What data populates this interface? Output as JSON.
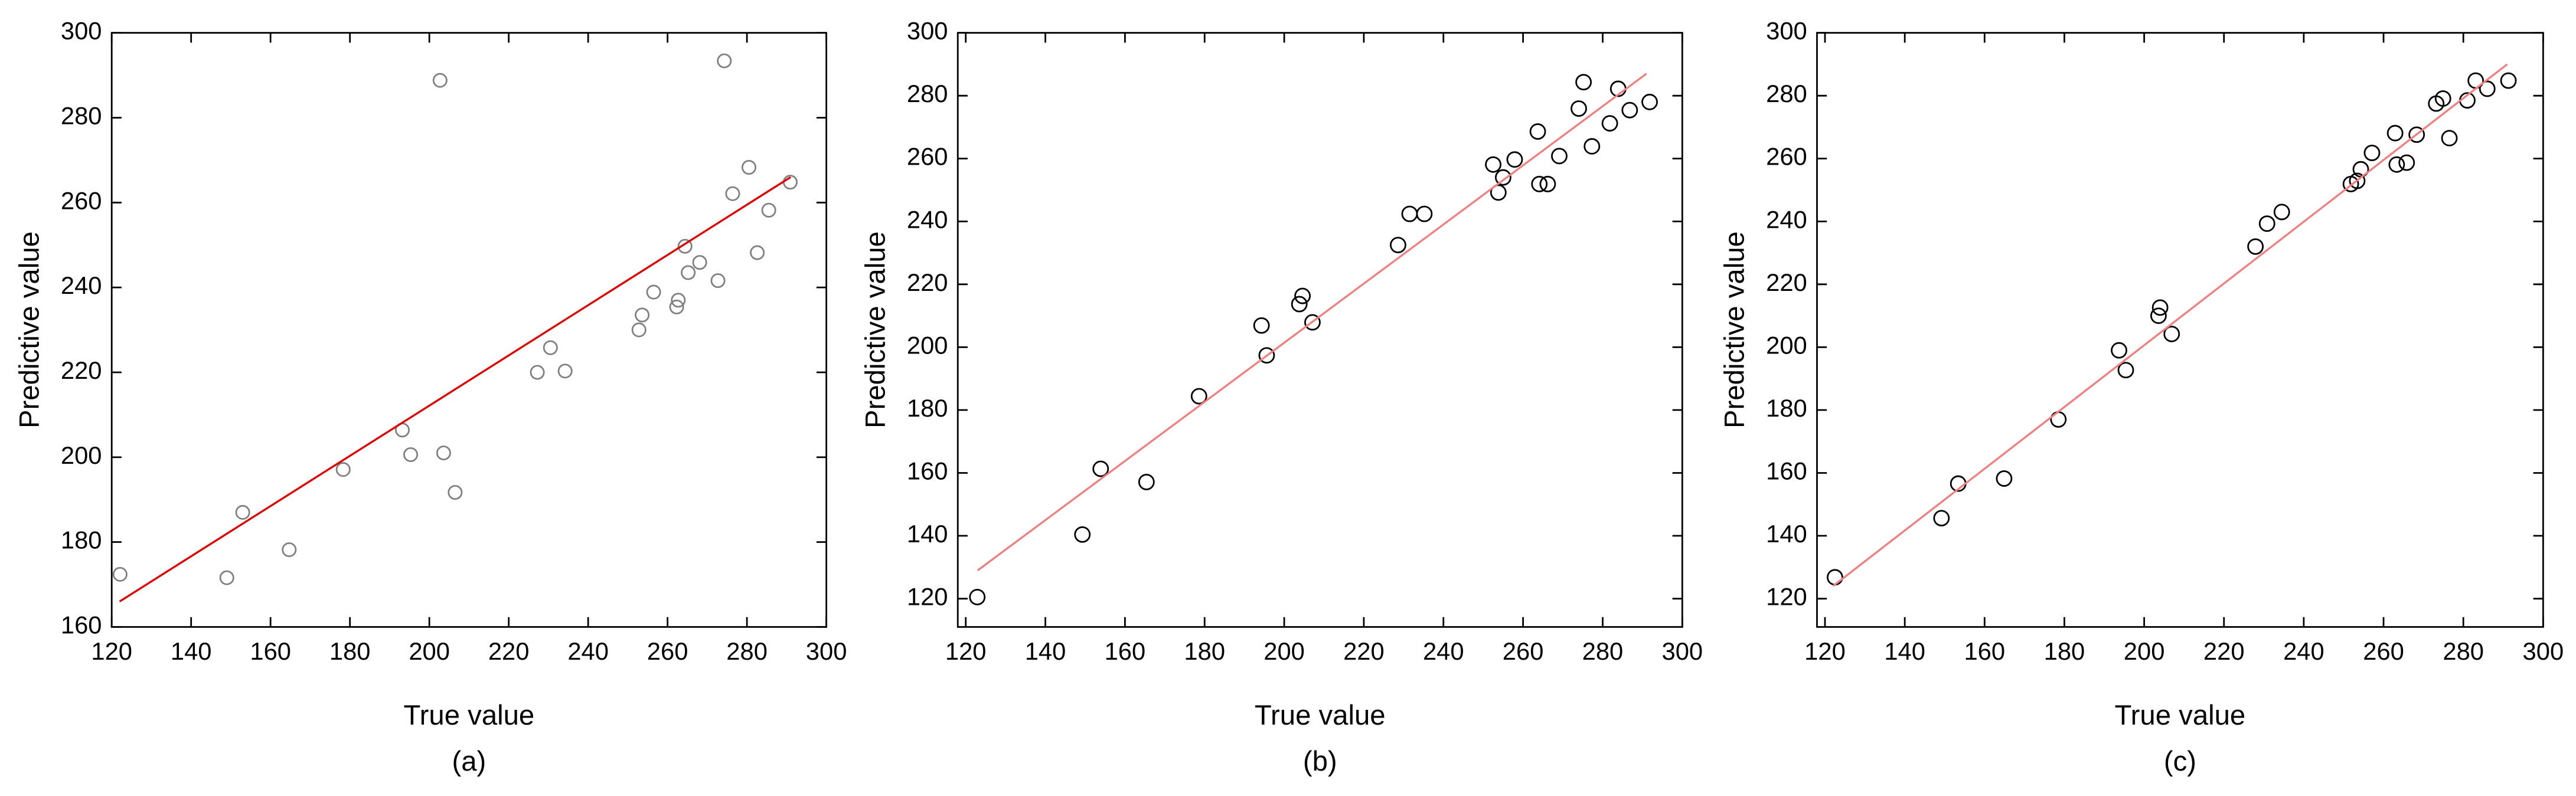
{
  "chart_data": [
    {
      "type": "scatter",
      "xlabel": "True value",
      "ylabel": "Predictive value",
      "caption": "(a)",
      "xlim": [
        120,
        300
      ],
      "ylim": [
        160,
        300
      ],
      "xticks": [
        120,
        140,
        160,
        180,
        200,
        220,
        240,
        260,
        280,
        300
      ],
      "yticks": [
        160,
        180,
        200,
        220,
        240,
        260,
        280,
        300
      ],
      "color": "#808080",
      "fit_color": "#e00000",
      "x": [
        122.1,
        149,
        153,
        164.7,
        178.3,
        193.2,
        195.3,
        202.7,
        203.6,
        206.5,
        227.2,
        230.5,
        234.2,
        252.8,
        253.6,
        256.5,
        262.3,
        262.7,
        264.4,
        265.2,
        268.1,
        272.7,
        274.3,
        276.4,
        280.5,
        282.6,
        285.5,
        290.9
      ],
      "y": [
        172.4,
        171.6,
        187,
        178.2,
        197.1,
        206.4,
        200.6,
        288.8,
        201,
        191.7,
        220,
        225.8,
        220.3,
        230,
        233.5,
        238.9,
        235.4,
        237,
        249.7,
        243.5,
        245.9,
        241.6,
        293.4,
        262.1,
        268.3,
        248.2,
        258.2,
        264.8
      ],
      "fit_x": [
        122,
        291
      ],
      "fit_y": [
        166,
        266
      ]
    },
    {
      "type": "scatter",
      "xlabel": "True value",
      "ylabel": "Predictive value",
      "caption": "(b)",
      "xlim": [
        118,
        300
      ],
      "ylim": [
        111,
        300
      ],
      "xticks": [
        120,
        140,
        160,
        180,
        200,
        220,
        240,
        260,
        280,
        300
      ],
      "yticks": [
        120,
        140,
        160,
        180,
        200,
        220,
        240,
        260,
        280,
        300
      ],
      "color": "#000000",
      "fit_color": "#f08080",
      "x": [
        122.9,
        149.3,
        153.9,
        165.4,
        178.6,
        194.3,
        195.6,
        203.8,
        204.6,
        207.1,
        228.6,
        231.5,
        235.2,
        252.5,
        253.8,
        255,
        257.9,
        263.7,
        264.1,
        266.2,
        269.1,
        274,
        275.2,
        277.3,
        281.8,
        283.9,
        286.8,
        291.8
      ],
      "y": [
        120.5,
        140.4,
        161.3,
        157.1,
        184.4,
        206.9,
        197.4,
        213.7,
        216.3,
        207.9,
        232.5,
        242.4,
        242.4,
        258.1,
        249.2,
        254,
        259.7,
        268.6,
        251.9,
        251.9,
        260.8,
        275.9,
        284.3,
        263.9,
        271.2,
        282.2,
        275.4,
        278
      ],
      "fit_x": [
        123,
        291
      ],
      "fit_y": [
        129,
        287
      ]
    },
    {
      "type": "scatter",
      "xlabel": "True value",
      "ylabel": "Predictive value",
      "caption": "(c)",
      "xlim": [
        118,
        300
      ],
      "ylim": [
        111,
        300
      ],
      "xticks": [
        120,
        140,
        160,
        180,
        200,
        220,
        240,
        260,
        280,
        300
      ],
      "yticks": [
        120,
        140,
        160,
        180,
        200,
        220,
        240,
        260,
        280,
        300
      ],
      "color": "#000000",
      "fit_color": "#f08080",
      "x": [
        122.5,
        149.2,
        153.4,
        164.9,
        178.5,
        193.7,
        195.4,
        203.6,
        204,
        206.9,
        227.9,
        230.8,
        234.5,
        251.8,
        253.4,
        254.3,
        257.1,
        262.9,
        263.3,
        265.8,
        268.3,
        273.2,
        274.9,
        276.5,
        281,
        283.1,
        286,
        291.3
      ],
      "y": [
        126.8,
        145.6,
        156.6,
        158.2,
        177,
        199,
        192.7,
        210,
        212.6,
        204.2,
        232,
        239.3,
        243,
        251.9,
        252.9,
        256.6,
        261.8,
        268.1,
        258.1,
        258.7,
        267.6,
        277.5,
        279.1,
        266.5,
        278.5,
        284.8,
        282.2,
        284.8
      ],
      "fit_x": [
        122,
        291
      ],
      "fit_y": [
        124,
        290
      ]
    }
  ]
}
